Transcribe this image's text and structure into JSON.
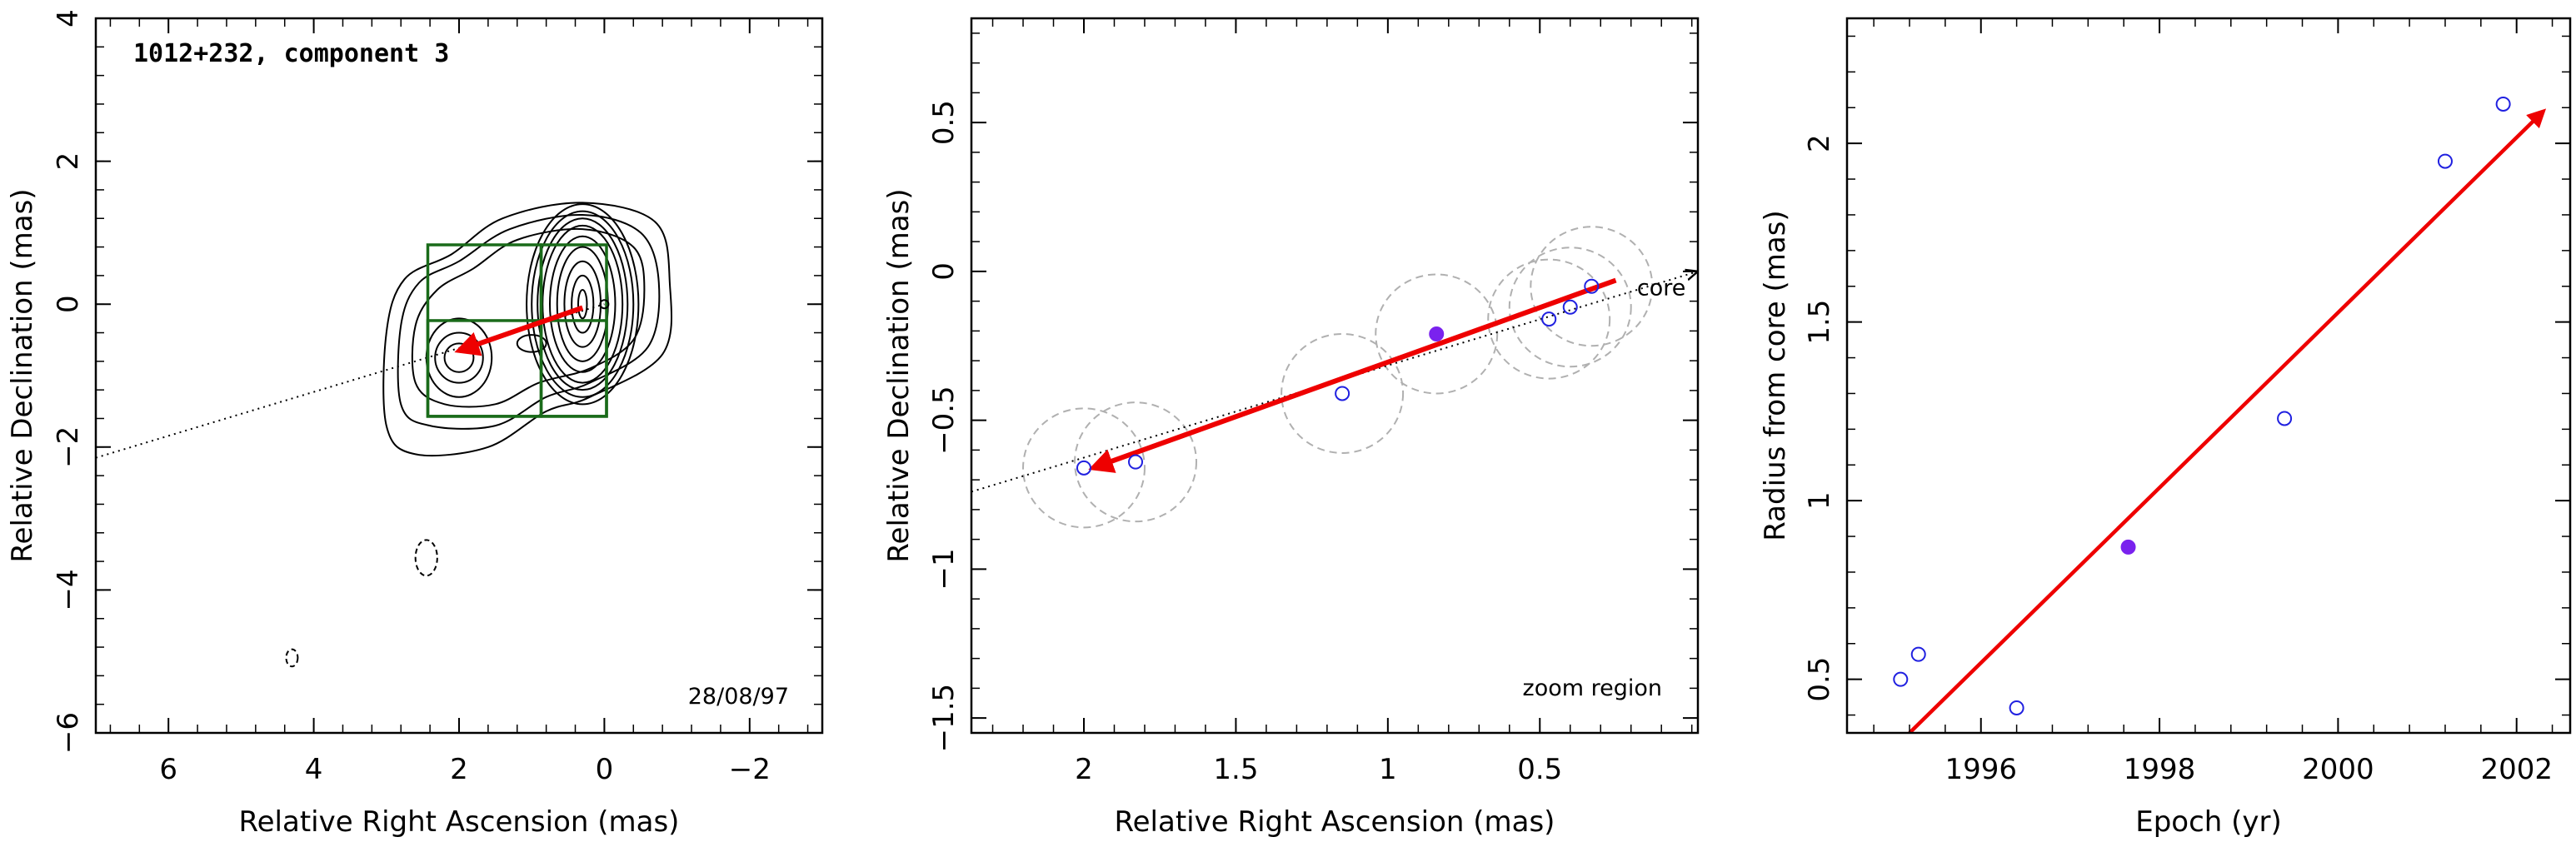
{
  "chart_data": [
    {
      "type": "contour",
      "title": "1012+232, component 3",
      "annotation": "28/08/97",
      "xlabel": "Relative Right Ascension (mas)",
      "ylabel": "Relative Declination (mas)",
      "xlim": [
        7,
        -3
      ],
      "ylim": [
        -6,
        4
      ],
      "xticks": [
        6,
        4,
        2,
        0,
        -2
      ],
      "yticks": [
        -6,
        -4,
        -2,
        0,
        2,
        4
      ],
      "xtick_labels": [
        "6",
        "4",
        "2",
        "0",
        "−2"
      ],
      "ytick_labels": [
        "−6",
        "−4",
        "−2",
        "0",
        "2",
        "4"
      ],
      "contours": [
        {
          "cx": 0.3,
          "cy": 0.0,
          "levels": [
            [
              0.06,
              0.2
            ],
            [
              0.15,
              0.4
            ],
            [
              0.25,
              0.6
            ],
            [
              0.35,
              0.8
            ],
            [
              0.45,
              0.95
            ],
            [
              0.55,
              1.1
            ],
            [
              0.62,
              1.2
            ],
            [
              0.7,
              1.3
            ],
            [
              0.77,
              1.4
            ]
          ]
        },
        {
          "cx": 2.0,
          "cy": -0.75,
          "levels": [
            [
              0.2,
              0.2
            ],
            [
              0.33,
              0.35
            ],
            [
              0.45,
              0.55
            ]
          ]
        },
        {
          "cx": 1.0,
          "cy": -0.55,
          "levels": [
            [
              0.2,
              0.12
            ]
          ]
        }
      ],
      "envelope_levels": [
        [
          [
            0.2,
            -0.9
          ],
          [
            -0.4,
            -0.5
          ],
          [
            -0.55,
            0.2
          ],
          [
            -0.4,
            0.8
          ],
          [
            0.3,
            1.05
          ],
          [
            1.2,
            0.9
          ],
          [
            1.8,
            0.5
          ],
          [
            2.3,
            0.2
          ],
          [
            2.6,
            -0.3
          ],
          [
            2.6,
            -1.1
          ],
          [
            2.2,
            -1.4
          ],
          [
            1.5,
            -1.4
          ],
          [
            0.9,
            -1.1
          ]
        ],
        [
          [
            0.2,
            -1.1
          ],
          [
            -0.6,
            -0.6
          ],
          [
            -0.75,
            0.3
          ],
          [
            -0.5,
            1.0
          ],
          [
            0.3,
            1.25
          ],
          [
            1.3,
            1.05
          ],
          [
            2.0,
            0.6
          ],
          [
            2.55,
            0.3
          ],
          [
            2.8,
            -0.3
          ],
          [
            2.8,
            -1.4
          ],
          [
            2.4,
            -1.7
          ],
          [
            1.5,
            -1.7
          ],
          [
            0.8,
            -1.3
          ]
        ],
        [
          [
            0.2,
            -1.3
          ],
          [
            -0.8,
            -0.7
          ],
          [
            -0.9,
            0.3
          ],
          [
            -0.7,
            1.15
          ],
          [
            0.3,
            1.42
          ],
          [
            1.4,
            1.2
          ],
          [
            2.1,
            0.7
          ],
          [
            2.75,
            0.35
          ],
          [
            3.0,
            -0.4
          ],
          [
            3.0,
            -1.7
          ],
          [
            2.6,
            -2.1
          ],
          [
            1.6,
            -2.0
          ],
          [
            0.8,
            -1.5
          ]
        ]
      ],
      "negative_contours": [
        {
          "cx": 2.45,
          "cy": -3.55,
          "rx": 0.15,
          "ry": 0.25
        },
        {
          "cx": 4.3,
          "cy": -4.95,
          "rx": 0.08,
          "ry": 0.12
        }
      ],
      "zoom_boxes": [
        {
          "x": [
            2.43,
            0.87
          ],
          "y": [
            -1.57,
            0.83
          ]
        },
        {
          "x": [
            0.87,
            -0.03
          ],
          "y": [
            -1.57,
            0.83
          ]
        },
        {
          "x": [
            2.43,
            -0.03
          ],
          "y": [
            -1.57,
            -0.23
          ]
        }
      ],
      "trajectory_line": {
        "x": [
          7,
          0
        ],
        "y": [
          -2.15,
          0
        ]
      },
      "motion_arrow": {
        "from": [
          0.3,
          -0.05
        ],
        "to": [
          2.0,
          -0.65
        ]
      },
      "core_marker": {
        "x": 0.0,
        "y": 0.0
      }
    },
    {
      "type": "scatter",
      "xlabel": "Relative Right Ascension (mas)",
      "ylabel": "Relative Declination (mas)",
      "annotation": "zoom region",
      "core_label": "core",
      "xlim": [
        2.37,
        -0.02
      ],
      "ylim": [
        -1.55,
        0.85
      ],
      "xticks": [
        2,
        1.5,
        1,
        0.5
      ],
      "yticks": [
        -1.5,
        -1,
        -0.5,
        0,
        0.5
      ],
      "xtick_labels": [
        "2",
        "1.5",
        "1",
        "0.5"
      ],
      "ytick_labels": [
        "−1.5",
        "−1",
        "−0.5",
        "0",
        "0.5"
      ],
      "points": [
        {
          "x": 2.0,
          "y": -0.66,
          "filled": false
        },
        {
          "x": 1.83,
          "y": -0.64,
          "filled": false
        },
        {
          "x": 1.15,
          "y": -0.41,
          "filled": false
        },
        {
          "x": 0.84,
          "y": -0.21,
          "filled": true
        },
        {
          "x": 0.47,
          "y": -0.16,
          "filled": false
        },
        {
          "x": 0.4,
          "y": -0.12,
          "filled": false
        },
        {
          "x": 0.33,
          "y": -0.05,
          "filled": false
        }
      ],
      "uncertainty_radius": 0.2,
      "trajectory_line": {
        "x": [
          2.37,
          -0.02
        ],
        "y": [
          -0.74,
          0.0
        ]
      },
      "motion_arrow": {
        "from": [
          0.25,
          -0.03
        ],
        "to": [
          1.97,
          -0.66
        ]
      }
    },
    {
      "type": "scatter",
      "xlabel": "Epoch (yr)",
      "ylabel": "Radius from core (mas)",
      "xlim": [
        1994.5,
        2002.6
      ],
      "ylim": [
        0.35,
        2.35
      ],
      "xticks": [
        1996,
        1998,
        2000,
        2002
      ],
      "yticks": [
        0.5,
        1,
        1.5,
        2
      ],
      "xtick_labels": [
        "1996",
        "1998",
        "2000",
        "2002"
      ],
      "ytick_labels": [
        "0.5",
        "1",
        "1.5",
        "2"
      ],
      "points": [
        {
          "x": 1995.1,
          "y": 0.5,
          "filled": false
        },
        {
          "x": 1995.3,
          "y": 0.57,
          "filled": false
        },
        {
          "x": 1996.4,
          "y": 0.42,
          "filled": false
        },
        {
          "x": 1997.65,
          "y": 0.87,
          "filled": true
        },
        {
          "x": 1999.4,
          "y": 1.23,
          "filled": false
        },
        {
          "x": 2001.2,
          "y": 1.95,
          "filled": false
        },
        {
          "x": 2001.85,
          "y": 2.11,
          "filled": false
        }
      ],
      "fit_arrow": {
        "from": [
          1995.2,
          0.35
        ],
        "to": [
          2002.3,
          2.09
        ]
      }
    }
  ],
  "colors": {
    "axes": "#000000",
    "contour": "#000000",
    "zoom_box": "#1a6b1a",
    "arrow": "#ee0000",
    "point": "#2020e0",
    "point_filled": "#7a22ee",
    "uncertainty": "#b0b0b0"
  }
}
